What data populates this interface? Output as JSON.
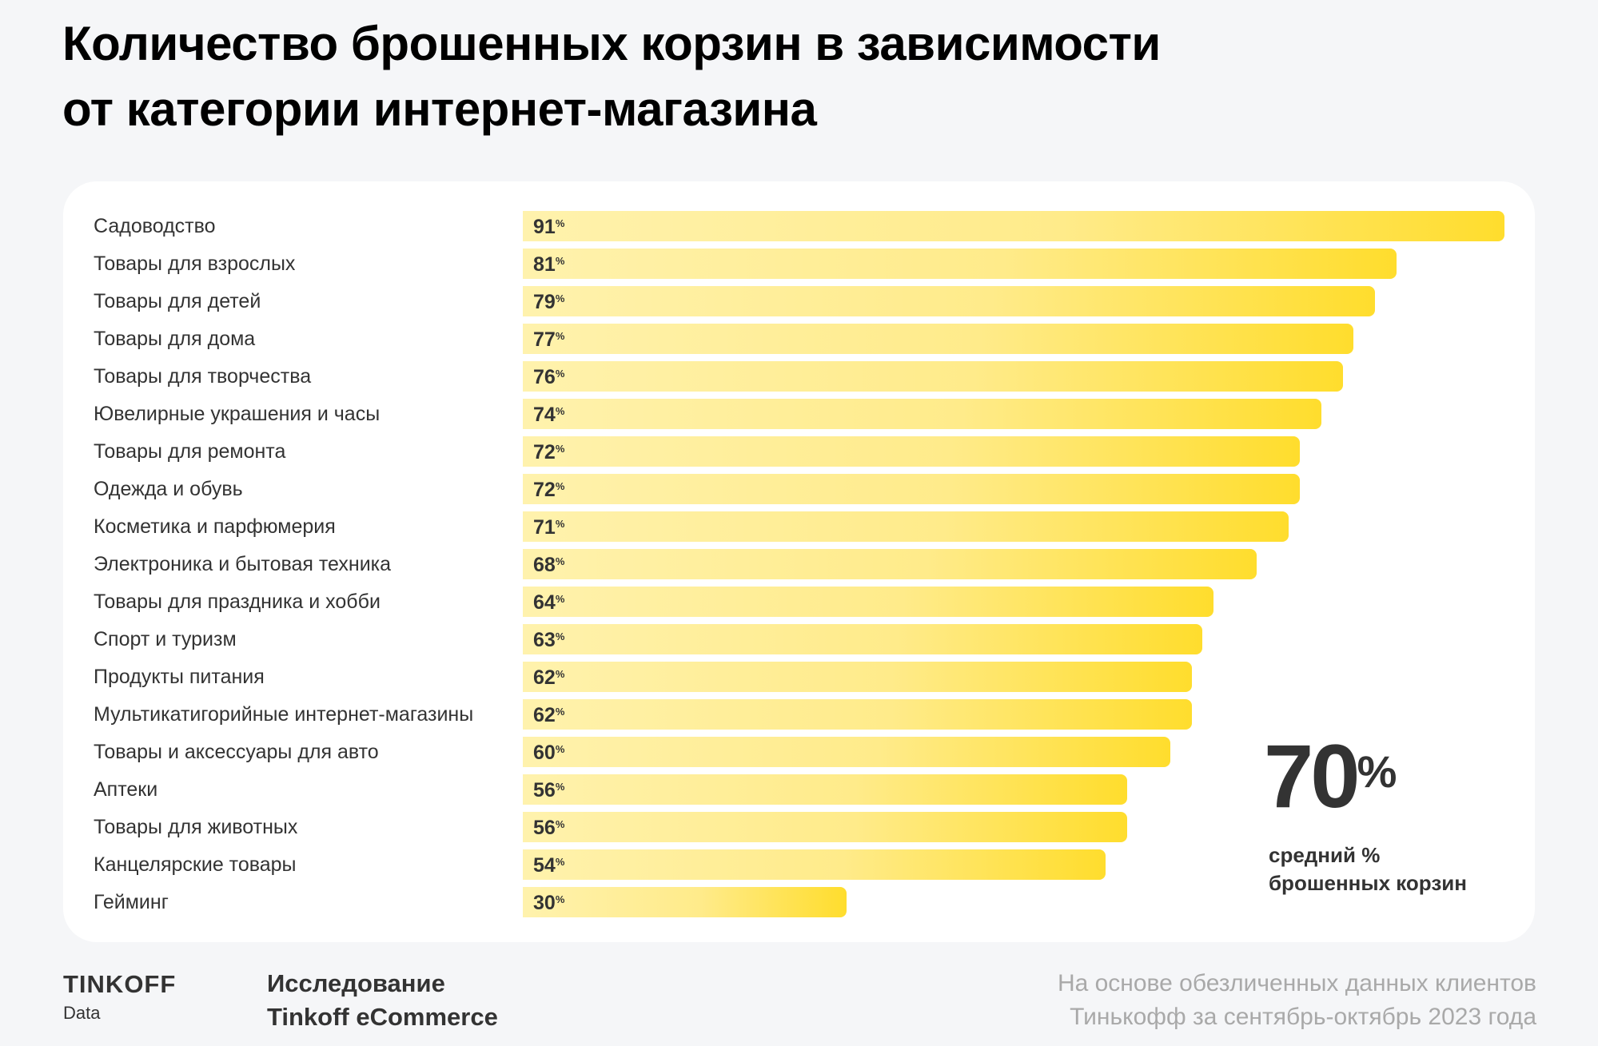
{
  "chart_data": {
    "type": "bar",
    "orientation": "horizontal",
    "title": "Количество брошенных корзин в зависимости от категории интернет-магазина",
    "title_lines": [
      "Количество брошенных корзин в зависимости",
      "от категории интернет-магазина"
    ],
    "categories": [
      "Садоводство",
      "Товары для взрослых",
      "Товары для детей",
      "Товары для дома",
      "Товары для творчества",
      "Ювелирные украшения и часы",
      "Товары для ремонта",
      "Одежда и обувь",
      "Косметика и парфюмерия",
      "Электроника и бытовая техника",
      "Товары для праздника и хобби",
      "Спорт и туризм",
      "Продукты питания",
      "Мультикатигорийные интернет-магазины",
      "Товары и аксессуары для авто",
      "Аптеки",
      "Товары для животных",
      "Канцелярские товары",
      "Гейминг"
    ],
    "values": [
      91,
      81,
      79,
      77,
      76,
      74,
      72,
      72,
      71,
      68,
      64,
      63,
      62,
      62,
      60,
      56,
      56,
      54,
      30
    ],
    "value_suffix": "%",
    "xlim": [
      0,
      91
    ],
    "grid": false,
    "bar_gradient": [
      "#fff2ad",
      "#ffdd2d"
    ],
    "average": {
      "value": "70",
      "suffix": "%",
      "caption_lines": [
        "средний %",
        "брошенных корзин"
      ]
    }
  },
  "footer": {
    "logo": "TINKOFF",
    "logo_sub": "Data",
    "study_lines": [
      "Исследование",
      "Tinkoff eCommerce"
    ],
    "source_lines": [
      "На основе обезличенных данных клиентов",
      "Тинькофф за сентябрь-октябрь 2023 года"
    ]
  }
}
